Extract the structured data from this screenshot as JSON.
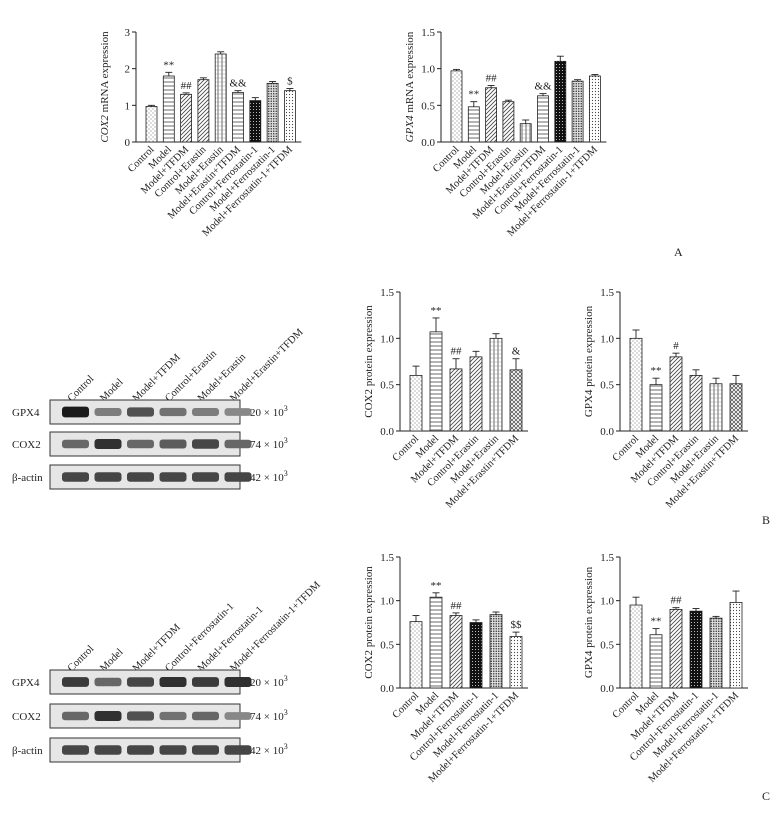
{
  "panel_letters": {
    "a": "A",
    "b": "B",
    "c": "C"
  },
  "chart_data": [
    {
      "id": "A1",
      "type": "bar",
      "ylabel_italic": "COX2",
      "ylabel_rest": " mRNA expression",
      "ylim": [
        0,
        3
      ],
      "yticks": [
        "0",
        "1",
        "2",
        "3"
      ],
      "categories": [
        "Control",
        "Model",
        "Model+TFDM",
        "Control+Erastin",
        "Model+Erastin",
        "Model+Erastin+TFDM",
        "Control+Ferrostatin-1",
        "Model+Ferrostatin-1",
        "Model+Ferrostatin-1+TFDM"
      ],
      "values": [
        0.97,
        1.8,
        1.3,
        1.7,
        2.4,
        1.35,
        1.13,
        1.6,
        1.4
      ],
      "errors": [
        0.03,
        0.1,
        0.04,
        0.05,
        0.06,
        0.05,
        0.08,
        0.05,
        0.06
      ],
      "annotations": [
        "",
        "**",
        "##",
        "",
        "",
        "&&",
        "",
        "",
        "$"
      ],
      "patterns": [
        "dots",
        "hlines",
        "diag",
        "diag",
        "vlines",
        "hlines",
        "black-grid",
        "dense-dots",
        "dots2"
      ]
    },
    {
      "id": "A2",
      "type": "bar",
      "ylabel_italic": "GPX4",
      "ylabel_rest": " mRNA expression",
      "ylim": [
        0,
        1.5
      ],
      "yticks": [
        "0.0",
        "0.5",
        "1.0",
        "1.5"
      ],
      "categories": [
        "Control",
        "Model",
        "Model+TFDM",
        "Control+Erastin",
        "Model+Erastin",
        "Model+Erastin+TFDM",
        "Control+Ferrostatin-1",
        "Model+Ferrostatin-1",
        "Model+Ferrostatin-1+TFDM"
      ],
      "values": [
        0.97,
        0.48,
        0.74,
        0.55,
        0.25,
        0.63,
        1.1,
        0.83,
        0.9
      ],
      "errors": [
        0.02,
        0.07,
        0.03,
        0.02,
        0.05,
        0.03,
        0.07,
        0.02,
        0.02
      ],
      "annotations": [
        "",
        "**",
        "##",
        "",
        "",
        "&&",
        "",
        "",
        ""
      ],
      "patterns": [
        "dots",
        "hlines",
        "diag",
        "diag",
        "vlines",
        "hlines",
        "black-grid",
        "dense-dots",
        "dots2"
      ]
    },
    {
      "id": "B1",
      "type": "bar",
      "ylabel_italic": "",
      "ylabel_rest": "COX2  protein expression",
      "ylim": [
        0,
        1.5
      ],
      "yticks": [
        "0.0",
        "0.5",
        "1.0",
        "1.5"
      ],
      "categories": [
        "Control",
        "Model",
        "Model+TFDM",
        "Control+Erastin",
        "Model+Erastin",
        "Model+Erastin+TFDM"
      ],
      "values": [
        0.6,
        1.07,
        0.67,
        0.8,
        1.0,
        0.66
      ],
      "errors": [
        0.1,
        0.15,
        0.11,
        0.06,
        0.05,
        0.12
      ],
      "annotations": [
        "",
        "**",
        "##",
        "",
        "",
        "&"
      ],
      "patterns": [
        "dots",
        "hlines",
        "diag",
        "diag",
        "vlines",
        "crosshatch"
      ]
    },
    {
      "id": "B2",
      "type": "bar",
      "ylabel_italic": "",
      "ylabel_rest": "GPX4  protein expression",
      "ylim": [
        0,
        1.5
      ],
      "yticks": [
        "0.0",
        "0.5",
        "1.0",
        "1.5"
      ],
      "categories": [
        "Control",
        "Model",
        "Model+TFDM",
        "Control+Erastin",
        "Model+Erastin",
        "Model+Erastin+TFDM"
      ],
      "values": [
        1.0,
        0.5,
        0.8,
        0.6,
        0.51,
        0.51
      ],
      "errors": [
        0.09,
        0.07,
        0.04,
        0.06,
        0.06,
        0.09
      ],
      "annotations": [
        "",
        "**",
        "#",
        "",
        "",
        ""
      ],
      "patterns": [
        "dots",
        "hlines",
        "diag",
        "diag",
        "vlines",
        "crosshatch"
      ]
    },
    {
      "id": "C1",
      "type": "bar",
      "ylabel_italic": "",
      "ylabel_rest": "COX2  protein expression",
      "ylim": [
        0,
        1.5
      ],
      "yticks": [
        "0.0",
        "0.5",
        "1.0",
        "1.5"
      ],
      "categories": [
        "Control",
        "Model",
        "Model+TFDM",
        "Control+Ferrostatin-1",
        "Model+Ferrostatin-1",
        "Model+Ferrostatin-1+TFDM"
      ],
      "values": [
        0.76,
        1.04,
        0.83,
        0.75,
        0.84,
        0.59
      ],
      "errors": [
        0.07,
        0.05,
        0.03,
        0.03,
        0.03,
        0.05
      ],
      "annotations": [
        "",
        "**",
        "##",
        "",
        "",
        "$$"
      ],
      "patterns": [
        "dots",
        "hlines",
        "diag",
        "black-grid",
        "dense-dots",
        "dots2"
      ]
    },
    {
      "id": "C2",
      "type": "bar",
      "ylabel_italic": "",
      "ylabel_rest": "GPX4  protein expression",
      "ylim": [
        0,
        1.5
      ],
      "yticks": [
        "0.0",
        "0.5",
        "1.0",
        "1.5"
      ],
      "categories": [
        "Control",
        "Model",
        "Model+TFDM",
        "Control+Ferrostatin-1",
        "Model+Ferrostatin-1",
        "Model+Ferrostatin-1+TFDM"
      ],
      "values": [
        0.95,
        0.61,
        0.9,
        0.88,
        0.8,
        0.98
      ],
      "errors": [
        0.09,
        0.07,
        0.02,
        0.03,
        0.02,
        0.13
      ],
      "annotations": [
        "",
        "**",
        "##",
        "",
        "",
        ""
      ],
      "patterns": [
        "dots",
        "hlines",
        "diag",
        "black-grid",
        "dense-dots",
        "dots2"
      ]
    }
  ],
  "blots": [
    {
      "id": "B",
      "lanes": [
        "Control",
        "Model",
        "Model+TFDM",
        "Control+Erastin",
        "Model+Erastin",
        "Model+Erastin+TFDM"
      ],
      "rows": [
        {
          "label": "GPX4",
          "mw": "20 × 10",
          "mw_exp": "3",
          "intensity": [
            0.95,
            0.5,
            0.7,
            0.55,
            0.5,
            0.45
          ]
        },
        {
          "label": "COX2",
          "mw": "74 × 10",
          "mw_exp": "3",
          "intensity": [
            0.6,
            0.85,
            0.6,
            0.65,
            0.75,
            0.6
          ]
        },
        {
          "label": "β-actin",
          "mw": "42 × 10",
          "mw_exp": "3",
          "intensity": [
            0.75,
            0.75,
            0.75,
            0.75,
            0.75,
            0.75
          ]
        }
      ]
    },
    {
      "id": "C",
      "lanes": [
        "Control",
        "Model",
        "Model+TFDM",
        "Control+Ferrostatin-1",
        "Model+Ferrostatin-1",
        "Model+Ferrostatin-1+TFDM"
      ],
      "rows": [
        {
          "label": "GPX4",
          "mw": "20 × 10",
          "mw_exp": "3",
          "intensity": [
            0.8,
            0.6,
            0.75,
            0.85,
            0.8,
            0.85
          ]
        },
        {
          "label": "COX2",
          "mw": "74 × 10",
          "mw_exp": "3",
          "intensity": [
            0.6,
            0.85,
            0.7,
            0.55,
            0.6,
            0.45
          ]
        },
        {
          "label": "β-actin",
          "mw": "42 × 10",
          "mw_exp": "3",
          "intensity": [
            0.75,
            0.75,
            0.75,
            0.75,
            0.75,
            0.75
          ]
        }
      ]
    }
  ]
}
